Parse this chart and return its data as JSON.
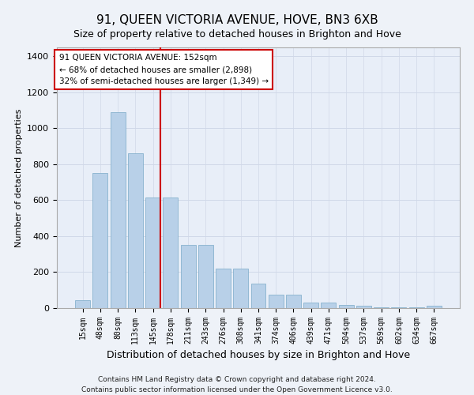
{
  "title": "91, QUEEN VICTORIA AVENUE, HOVE, BN3 6XB",
  "subtitle": "Size of property relative to detached houses in Brighton and Hove",
  "xlabel": "Distribution of detached houses by size in Brighton and Hove",
  "ylabel": "Number of detached properties",
  "categories": [
    "15sqm",
    "48sqm",
    "80sqm",
    "113sqm",
    "145sqm",
    "178sqm",
    "211sqm",
    "243sqm",
    "276sqm",
    "308sqm",
    "341sqm",
    "374sqm",
    "406sqm",
    "439sqm",
    "471sqm",
    "504sqm",
    "537sqm",
    "569sqm",
    "602sqm",
    "634sqm",
    "667sqm"
  ],
  "values": [
    45,
    750,
    1090,
    860,
    615,
    615,
    350,
    350,
    220,
    220,
    135,
    75,
    75,
    30,
    30,
    18,
    15,
    5,
    5,
    5,
    12
  ],
  "bar_color": "#b8d0e8",
  "bar_edgecolor": "#7aaac8",
  "grid_color": "#d0d8e8",
  "bg_color": "#e8eef8",
  "fig_bg_color": "#eef2f8",
  "property_label": "91 QUEEN VICTORIA AVENUE: 152sqm",
  "annotation_line1": "← 68% of detached houses are smaller (2,898)",
  "annotation_line2": "32% of semi-detached houses are larger (1,349) →",
  "vline_color": "#cc0000",
  "annotation_box_edgecolor": "#cc0000",
  "ylim": [
    0,
    1450
  ],
  "yticks": [
    0,
    200,
    400,
    600,
    800,
    1000,
    1200,
    1400
  ],
  "footnote1": "Contains HM Land Registry data © Crown copyright and database right 2024.",
  "footnote2": "Contains public sector information licensed under the Open Government Licence v3.0.",
  "title_fontsize": 11,
  "subtitle_fontsize": 9,
  "vline_bar_index": 4
}
